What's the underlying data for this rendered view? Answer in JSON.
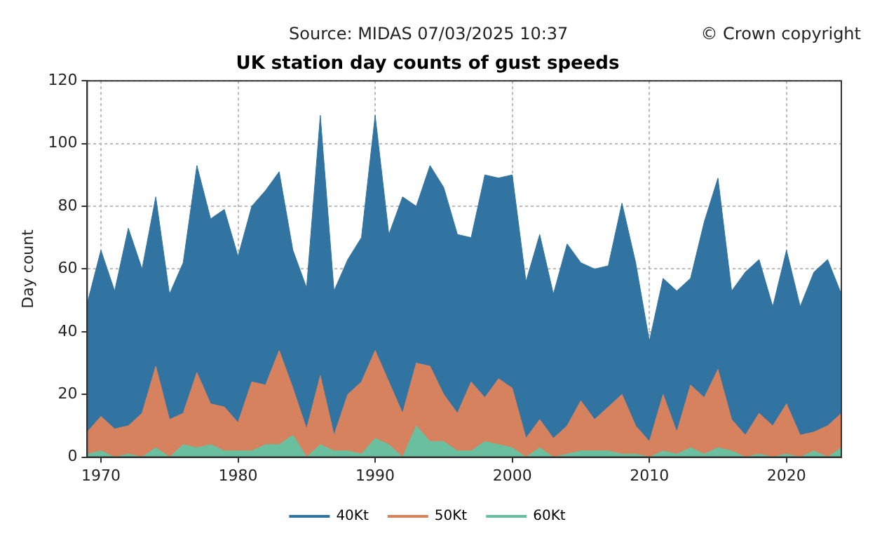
{
  "chart_data": {
    "type": "area",
    "title": "UK station day counts of gust speeds",
    "ylabel": "Day count",
    "annotations": [
      "Source: MIDAS 07/03/2025 10:37",
      "© Crown copyright"
    ],
    "x": [
      1969,
      1970,
      1971,
      1972,
      1973,
      1974,
      1975,
      1976,
      1977,
      1978,
      1979,
      1980,
      1981,
      1982,
      1983,
      1984,
      1985,
      1986,
      1987,
      1988,
      1989,
      1990,
      1991,
      1992,
      1993,
      1994,
      1995,
      1996,
      1997,
      1998,
      1999,
      2000,
      2001,
      2002,
      2003,
      2004,
      2005,
      2006,
      2007,
      2008,
      2009,
      2010,
      2011,
      2012,
      2013,
      2014,
      2015,
      2016,
      2017,
      2018,
      2019,
      2020,
      2021,
      2022,
      2023,
      2024
    ],
    "series": [
      {
        "name": "40Kt",
        "color": "#3274a1",
        "values": [
          49,
          66,
          53,
          73,
          60,
          83,
          52,
          62,
          93,
          76,
          79,
          64,
          80,
          85,
          91,
          66,
          54,
          109,
          53,
          63,
          70,
          109,
          71,
          83,
          80,
          93,
          86,
          71,
          70,
          90,
          89,
          90,
          56,
          71,
          52,
          68,
          62,
          60,
          61,
          81,
          62,
          37,
          57,
          53,
          57,
          75,
          89,
          53,
          59,
          63,
          48,
          66,
          48,
          59,
          63,
          52
        ]
      },
      {
        "name": "50Kt",
        "color": "#d6825e",
        "values": [
          8,
          13,
          9,
          10,
          14,
          29,
          12,
          14,
          27,
          17,
          16,
          11,
          24,
          23,
          34,
          22,
          9,
          26,
          7,
          20,
          24,
          34,
          24,
          14,
          30,
          29,
          20,
          14,
          24,
          19,
          25,
          22,
          6,
          12,
          6,
          10,
          18,
          12,
          16,
          20,
          10,
          5,
          20,
          8,
          23,
          19,
          28,
          12,
          7,
          14,
          10,
          17,
          7,
          8,
          10,
          14
        ]
      },
      {
        "name": "60Kt",
        "color": "#6abf9e",
        "values": [
          1,
          2,
          0,
          1,
          0,
          3,
          0,
          4,
          3,
          4,
          2,
          2,
          2,
          4,
          4,
          7,
          0,
          4,
          2,
          2,
          1,
          6,
          4,
          0,
          10,
          5,
          5,
          2,
          2,
          5,
          4,
          3,
          0,
          3,
          0,
          1,
          2,
          2,
          2,
          1,
          1,
          0,
          2,
          1,
          3,
          1,
          3,
          2,
          0,
          1,
          0,
          1,
          0,
          2,
          0,
          3
        ]
      }
    ],
    "xlim": [
      1969,
      2024
    ],
    "xticks": [
      1970,
      1980,
      1990,
      2000,
      2010,
      2020
    ],
    "ylim": [
      0,
      120
    ],
    "yticks": [
      0,
      20,
      40,
      60,
      80,
      100,
      120
    ],
    "grid": true,
    "legend": "bottom"
  }
}
